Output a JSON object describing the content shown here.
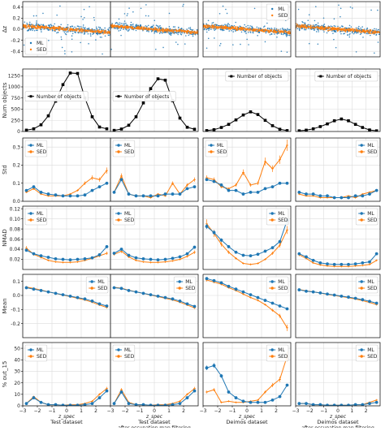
{
  "chart_data": {
    "type": "line",
    "grid": true,
    "legend_placement": "top-right",
    "x_tick_labels": [
      "−3",
      "−2",
      "−1",
      "0",
      "1",
      "2"
    ],
    "x_axis_label": "z_spec",
    "x_domain": [
      -3,
      3
    ],
    "datasets": [
      {
        "name": "Test dataset",
        "subtitle": ""
      },
      {
        "name": "Test dataset",
        "subtitle": "after occupation map filtering"
      },
      {
        "name": "Deimos dataset",
        "subtitle": ""
      },
      {
        "name": "Deimos dataset",
        "subtitle": "after occupation map filtering"
      }
    ],
    "x_bins": [
      -2.75,
      -2.25,
      -1.75,
      -1.25,
      -0.75,
      -0.25,
      0.25,
      0.75,
      1.25,
      1.75,
      2.25,
      2.75
    ],
    "colors": {
      "ML": "#1f77b4",
      "SED": "#ff7f0e",
      "count": "#000000"
    },
    "rows": [
      {
        "type": "scatter",
        "ylabel": "Δz",
        "ylim": [
          -0.5,
          0.5
        ],
        "yticks": [
          "-0.4",
          "-0.2",
          "0.0",
          "0.2",
          "0.4"
        ],
        "yticks_values": [
          -0.4,
          -0.2,
          0.0,
          0.2,
          0.4
        ],
        "legend": [
          {
            "name": "ML",
            "marker": "dot",
            "color": "#1f77b4"
          },
          {
            "name": "SED",
            "marker": "dot",
            "color": "#ff7f0e"
          }
        ],
        "legend_panel": [
          0,
          2
        ],
        "legend_corner": [
          "bottom-left",
          "top-right"
        ],
        "legend_upper": [
          false,
          true
        ],
        "scatter_spread": {
          "ML": 0.12,
          "SED": 0.05
        },
        "scatter_slope": -0.02
      },
      {
        "type": "count",
        "ylabel": "Num objects",
        "ylim": [
          0,
          1400
        ],
        "yticks": [
          "0",
          "250",
          "500",
          "750",
          "1000",
          "1250"
        ],
        "yticks_values": [
          0,
          250,
          500,
          750,
          1000,
          1250
        ],
        "legend": [
          {
            "name": "Number of objects",
            "marker": "square",
            "color": "#000000"
          }
        ],
        "legend_corner": [
          "mid-left",
          "mid-left",
          "top-right",
          "top-right"
        ],
        "panels": [
          [
            30,
            60,
            150,
            350,
            680,
            1050,
            1310,
            1300,
            750,
            330,
            100,
            60
          ],
          [
            25,
            55,
            140,
            330,
            640,
            960,
            1180,
            1150,
            690,
            300,
            95,
            50
          ],
          [
            20,
            40,
            90,
            160,
            260,
            370,
            440,
            380,
            250,
            130,
            50,
            20
          ],
          [
            15,
            30,
            60,
            110,
            170,
            240,
            280,
            240,
            160,
            90,
            35,
            15
          ]
        ]
      },
      {
        "type": "lines",
        "ylabel": "Std",
        "ylim": [
          0,
          0.35
        ],
        "yticks": [
          "0.0",
          "0.1",
          "0.2",
          "0.3"
        ],
        "yticks_values": [
          0.0,
          0.1,
          0.2,
          0.3
        ],
        "legend": [
          {
            "name": "ML",
            "marker": "dot",
            "color": "#1f77b4"
          },
          {
            "name": "SED",
            "marker": "dot",
            "color": "#ff7f0e"
          }
        ],
        "legend_corner": [
          "top-left",
          "top-left",
          "top-left",
          "top-right"
        ],
        "panels": [
          {
            "ML": [
              0.06,
              0.08,
              0.05,
              0.04,
              0.035,
              0.03,
              0.03,
              0.03,
              0.035,
              0.06,
              0.08,
              0.1
            ],
            "SED": [
              0.05,
              0.07,
              0.04,
              0.03,
              0.03,
              0.03,
              0.04,
              0.06,
              0.1,
              0.13,
              0.12,
              0.17
            ]
          },
          {
            "ML": [
              0.05,
              0.12,
              0.04,
              0.03,
              0.03,
              0.03,
              0.03,
              0.04,
              0.04,
              0.04,
              0.07,
              0.08
            ],
            "SED": [
              0.05,
              0.14,
              0.04,
              0.03,
              0.03,
              0.02,
              0.04,
              0.03,
              0.1,
              0.04,
              0.09,
              0.12
            ]
          },
          {
            "ML": [
              0.12,
              0.11,
              0.09,
              0.06,
              0.06,
              0.04,
              0.05,
              0.05,
              0.07,
              0.08,
              0.1,
              0.1
            ],
            "SED": [
              0.13,
              0.12,
              0.08,
              0.07,
              0.09,
              0.16,
              0.09,
              0.1,
              0.22,
              0.18,
              0.23,
              0.31
            ]
          },
          {
            "ML": [
              0.05,
              0.04,
              0.04,
              0.03,
              0.03,
              0.02,
              0.02,
              0.02,
              0.03,
              0.03,
              0.04,
              0.06
            ],
            "SED": [
              0.04,
              0.03,
              0.03,
              0.02,
              0.02,
              0.02,
              0.02,
              0.03,
              0.02,
              0.04,
              0.05,
              0.06
            ]
          }
        ]
      },
      {
        "type": "lines",
        "ylabel": "NMAD",
        "ylim": [
          0,
          0.125
        ],
        "yticks": [
          "0.02",
          "0.04",
          "0.06",
          "0.08",
          "0.10",
          "0.12"
        ],
        "yticks_values": [
          0.02,
          0.04,
          0.06,
          0.08,
          0.1,
          0.12
        ],
        "legend": [
          {
            "name": "ML",
            "marker": "dot",
            "color": "#1f77b4"
          },
          {
            "name": "SED",
            "marker": "dot",
            "color": "#ff7f0e"
          }
        ],
        "legend_corner": [
          "top-left",
          "top-left",
          "top-right",
          "top-right"
        ],
        "panels": [
          {
            "ML": [
              0.038,
              0.031,
              0.027,
              0.024,
              0.021,
              0.02,
              0.019,
              0.02,
              0.021,
              0.023,
              0.029,
              0.045
            ],
            "SED": [
              0.042,
              0.03,
              0.024,
              0.018,
              0.015,
              0.014,
              0.014,
              0.015,
              0.018,
              0.022,
              0.027,
              0.032
            ]
          },
          {
            "ML": [
              0.032,
              0.04,
              0.028,
              0.023,
              0.021,
              0.02,
              0.019,
              0.02,
              0.022,
              0.025,
              0.031,
              0.044
            ],
            "SED": [
              0.03,
              0.036,
              0.025,
              0.018,
              0.015,
              0.014,
              0.014,
              0.015,
              0.017,
              0.02,
              0.026,
              0.034
            ]
          },
          {
            "ML": [
              0.085,
              0.073,
              0.058,
              0.045,
              0.034,
              0.028,
              0.027,
              0.03,
              0.036,
              0.043,
              0.055,
              0.097
            ],
            "SED": [
              0.09,
              0.071,
              0.05,
              0.034,
              0.022,
              0.012,
              0.01,
              0.012,
              0.02,
              0.032,
              0.048,
              0.078
            ]
          },
          {
            "ML": [
              0.031,
              0.025,
              0.018,
              0.013,
              0.011,
              0.01,
              0.01,
              0.01,
              0.011,
              0.013,
              0.015,
              0.031
            ],
            "SED": [
              0.029,
              0.022,
              0.013,
              0.009,
              0.007,
              0.006,
              0.006,
              0.006,
              0.007,
              0.008,
              0.01,
              0.018
            ]
          }
        ]
      },
      {
        "type": "lines",
        "ylabel": "Mean",
        "ylim": [
          -0.3,
          0.15
        ],
        "yticks": [
          "-0.2",
          "-0.1",
          "0.0",
          "0.1"
        ],
        "yticks_values": [
          -0.2,
          -0.1,
          0.0,
          0.1
        ],
        "legend": [
          {
            "name": "ML",
            "marker": "dot",
            "color": "#1f77b4"
          },
          {
            "name": "SED",
            "marker": "dot",
            "color": "#ff7f0e"
          }
        ],
        "legend_corner": [
          "top-right",
          "top-right",
          "top-right",
          "top-right"
        ],
        "panels": [
          {
            "ML": [
              0.055,
              0.045,
              0.035,
              0.025,
              0.015,
              0.005,
              -0.005,
              -0.015,
              -0.025,
              -0.04,
              -0.06,
              -0.075
            ],
            "SED": [
              0.06,
              0.05,
              0.038,
              0.026,
              0.014,
              0.003,
              -0.008,
              -0.02,
              -0.032,
              -0.048,
              -0.068,
              -0.085
            ]
          },
          {
            "ML": [
              0.055,
              0.05,
              0.035,
              0.025,
              0.015,
              0.005,
              -0.005,
              -0.015,
              -0.025,
              -0.04,
              -0.06,
              -0.078
            ],
            "SED": [
              0.058,
              0.052,
              0.037,
              0.026,
              0.014,
              0.003,
              -0.008,
              -0.02,
              -0.032,
              -0.048,
              -0.068,
              -0.088
            ]
          },
          {
            "ML": [
              0.12,
              0.105,
              0.09,
              0.065,
              0.045,
              0.025,
              0.005,
              -0.015,
              -0.035,
              -0.055,
              -0.075,
              -0.095
            ],
            "SED": [
              0.11,
              0.095,
              0.08,
              0.055,
              0.035,
              0.01,
              -0.015,
              -0.035,
              -0.065,
              -0.105,
              -0.145,
              -0.23
            ]
          },
          {
            "ML": [
              0.04,
              0.03,
              0.025,
              0.018,
              0.01,
              0.003,
              -0.005,
              -0.012,
              -0.02,
              -0.03,
              -0.042,
              -0.055
            ],
            "SED": [
              0.042,
              0.033,
              0.025,
              0.017,
              0.008,
              0.0,
              -0.008,
              -0.016,
              -0.025,
              -0.037,
              -0.05,
              -0.065
            ]
          }
        ]
      },
      {
        "type": "lines",
        "ylabel": "% out_15",
        "ylim": [
          0,
          55
        ],
        "yticks": [
          "0",
          "10",
          "20",
          "30",
          "40",
          "50"
        ],
        "yticks_values": [
          0,
          10,
          20,
          30,
          40,
          50
        ],
        "legend": [
          {
            "name": "ML",
            "marker": "dot",
            "color": "#1f77b4"
          },
          {
            "name": "SED",
            "marker": "dot",
            "color": "#ff7f0e"
          }
        ],
        "legend_corner": [
          "top-left",
          "top-left",
          "top-right",
          "top-right"
        ],
        "panels": [
          {
            "ML": [
              2,
              7,
              3,
              1,
              1,
              0.5,
              0.5,
              0.5,
              1,
              2,
              7,
              13
            ],
            "SED": [
              2,
              8,
              3,
              1,
              1,
              0.5,
              1,
              1,
              2,
              4,
              10,
              15
            ]
          },
          {
            "ML": [
              2,
              12,
              2,
              1,
              1,
              0.5,
              0.5,
              0.5,
              1,
              2,
              7,
              13
            ],
            "SED": [
              2,
              14,
              3,
              1,
              1,
              0.5,
              1,
              1,
              2,
              4,
              10,
              15
            ]
          },
          {
            "ML": [
              33,
              35,
              26,
              12,
              7,
              4,
              3,
              3,
              3,
              5,
              8,
              18
            ],
            "SED": [
              12,
              14,
              3,
              4,
              3,
              3,
              4,
              5,
              12,
              18,
              23,
              43
            ]
          },
          {
            "ML": [
              2,
              2,
              1,
              1,
              0.5,
              0.5,
              0.5,
              0.5,
              1,
              1,
              2,
              3
            ],
            "SED": [
              2,
              2,
              1,
              1,
              0.5,
              0.5,
              0.5,
              0.5,
              1,
              1,
              3,
              5
            ]
          }
        ]
      }
    ]
  }
}
